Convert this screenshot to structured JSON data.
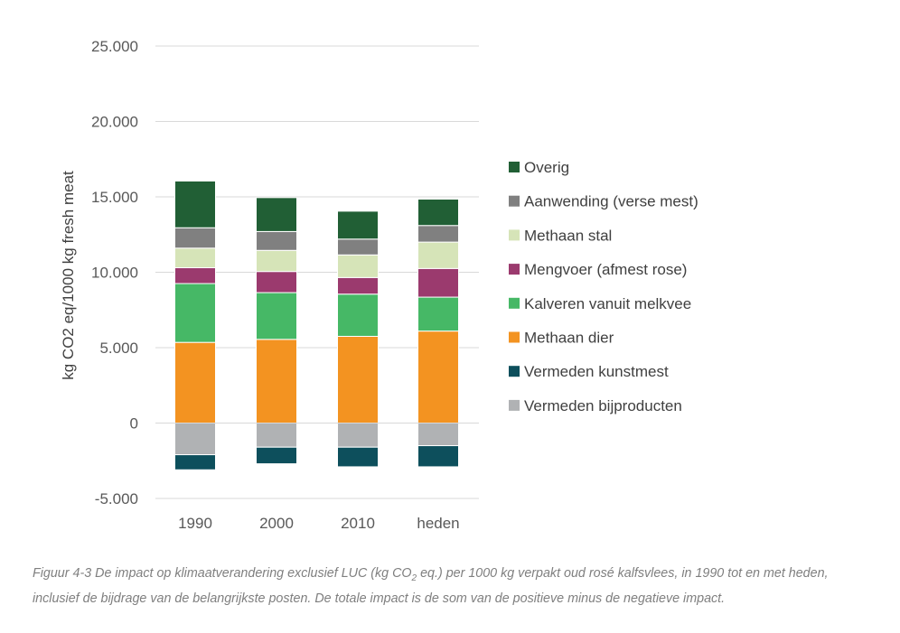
{
  "chart_data": {
    "type": "bar",
    "stacked": true,
    "ylabel": "kg CO2 eq/1000 kg fresh meat",
    "ylim": [
      -5000,
      25000
    ],
    "yticks": [
      -5000,
      0,
      5000,
      10000,
      15000,
      20000,
      25000
    ],
    "ytick_labels": [
      "-5.000",
      "0",
      "5.000",
      "10.000",
      "15.000",
      "20.000",
      "25.000"
    ],
    "grid": true,
    "legend_position": "right",
    "categories": [
      "1990",
      "2000",
      "2010",
      "heden"
    ],
    "series": [
      {
        "name": "Vermeden bijproducten",
        "color": "#b0b2b4",
        "values": [
          -2100,
          -1600,
          -1600,
          -1500
        ]
      },
      {
        "name": "Vermeden kunstmest",
        "color": "#0d4f5c",
        "values": [
          -1000,
          -1100,
          -1300,
          -1400
        ]
      },
      {
        "name": "Methaan dier",
        "color": "#f39321",
        "values": [
          5350,
          5550,
          5750,
          6100
        ]
      },
      {
        "name": "Kalveren vanuit melkvee",
        "color": "#46b866",
        "values": [
          3900,
          3100,
          2800,
          2250
        ]
      },
      {
        "name": "Mengvoer (afmest rose)",
        "color": "#9b3a6e",
        "values": [
          1050,
          1400,
          1100,
          1900
        ]
      },
      {
        "name": "Methaan stal",
        "color": "#d6e4b8",
        "values": [
          1300,
          1400,
          1500,
          1750
        ]
      },
      {
        "name": "Aanwending (verse mest)",
        "color": "#808080",
        "values": [
          1350,
          1250,
          1050,
          1100
        ]
      },
      {
        "name": "Overig",
        "color": "#215f35",
        "values": [
          3100,
          2250,
          1850,
          1750
        ]
      }
    ],
    "legend_order": [
      "Overig",
      "Aanwending (verse mest)",
      "Methaan stal",
      "Mengvoer (afmest rose)",
      "Kalveren vanuit melkvee",
      "Methaan dier",
      "Vermeden kunstmest",
      "Vermeden bijproducten"
    ]
  },
  "caption": {
    "part1": "Figuur 4-3 De impact op klimaatverandering exclusief LUC (kg CO",
    "sub": "2",
    "part2": " eq.) per 1000 kg verpakt oud rosé kalfsvlees, in 1990 tot en met heden, inclusief de bijdrage van de belangrijkste posten. De totale impact is de som van de positieve minus de negatieve impact."
  }
}
